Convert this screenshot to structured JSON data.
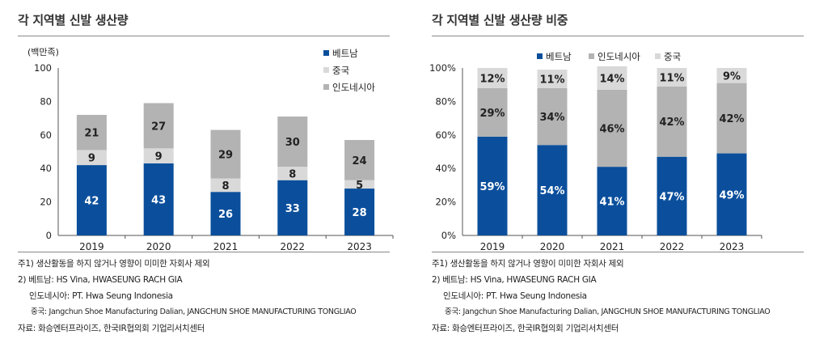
{
  "colors": {
    "vietnam": "#0b4f9c",
    "china": "#d9d9d9",
    "indonesia": "#b3b3b3",
    "axis": "#555555"
  },
  "left": {
    "title": "각 지역별 신발 생산량",
    "unit": "(백만족)",
    "legend": [
      "베트남",
      "중국",
      "인도네시아"
    ]
  },
  "right": {
    "title": "각 지역별 신발 생산량 비중",
    "legend": [
      "베트남",
      "인도네시아",
      "중국"
    ]
  },
  "notes": {
    "note1": "주1) 생산활동을 하지 않거나 영향이 미미한 자회사 제외",
    "note2": "2) 베트남: HS Vina, HWASEUNG RACH GIA",
    "note3": "인도네시아: PT. Hwa Seung Indonesia",
    "note4": "중국: Jangchun Shoe Manufacturing Dalian, JANGCHUN SHOE MANUFACTURING TONGLIAO",
    "note5": "자료: 화승엔터프라이즈, 한국IR협의회 기업리서치센터"
  },
  "chart_data": [
    {
      "type": "bar",
      "stacked": true,
      "title": "각 지역별 신발 생산량",
      "ylabel": "(백만족)",
      "ylim": [
        0,
        100
      ],
      "yticks": [
        0,
        20,
        40,
        60,
        80,
        100
      ],
      "categories": [
        "2019",
        "2020",
        "2021",
        "2022",
        "2023"
      ],
      "series": [
        {
          "name": "베트남",
          "values": [
            42,
            43,
            26,
            33,
            28
          ]
        },
        {
          "name": "중국",
          "values": [
            9,
            9,
            8,
            8,
            5
          ]
        },
        {
          "name": "인도네시아",
          "values": [
            21,
            27,
            29,
            30,
            24
          ]
        }
      ],
      "legend_position": "top-right"
    },
    {
      "type": "bar",
      "stacked": true,
      "title": "각 지역별 신발 생산량 비중",
      "ylim": [
        0,
        100
      ],
      "yticks": [
        "0%",
        "20%",
        "40%",
        "60%",
        "80%",
        "100%"
      ],
      "categories": [
        "2019",
        "2020",
        "2021",
        "2022",
        "2023"
      ],
      "series": [
        {
          "name": "베트남",
          "values": [
            59,
            54,
            41,
            47,
            49
          ]
        },
        {
          "name": "인도네시아",
          "values": [
            29,
            34,
            46,
            42,
            42
          ]
        },
        {
          "name": "중국",
          "values": [
            12,
            11,
            14,
            11,
            9
          ]
        }
      ],
      "legend_position": "top"
    }
  ]
}
